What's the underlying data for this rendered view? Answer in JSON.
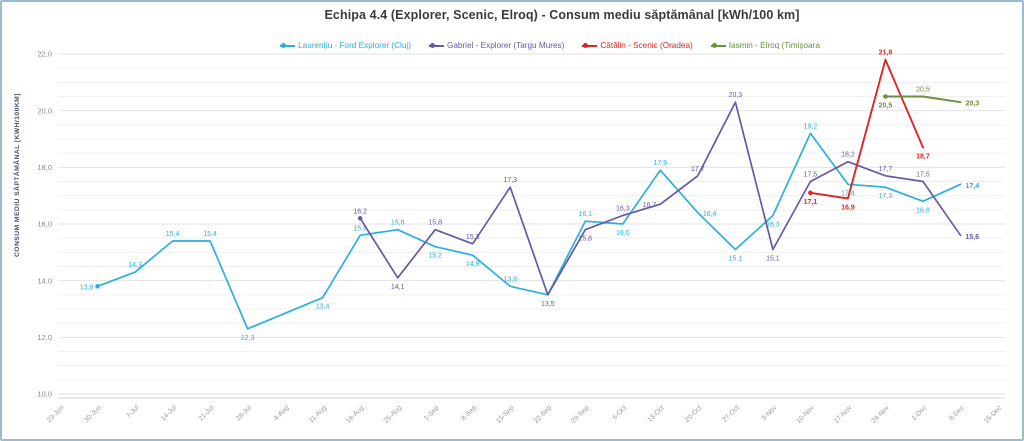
{
  "title": "Echipa 4.4 (Explorer, Scenic, Elroq) - Consum mediu săptămânal [kWh/100 km]",
  "y_axis": {
    "title": "CONSUM MEDIU SĂPTĂMÂNAL [KWH/100KM]",
    "tick_labels": [
      "10,0",
      "12,0",
      "14,0",
      "16,0",
      "18,0",
      "20,0",
      "22,0"
    ],
    "min": 10.0,
    "max": 22.0,
    "major_step": 2.0,
    "minor_step": 0.5
  },
  "legend": {
    "position": "top",
    "items": [
      {
        "label": "Laurențiu - Ford Explorer (Cluj)",
        "color": "#2bafdf"
      },
      {
        "label": "Gabriel - Explorer (Targu Mures)",
        "color": "#6958a5"
      },
      {
        "label": "Cătălin - Scenic (Oradea)",
        "color": "#df2525"
      },
      {
        "label": "Iasmin - Elroq (Timișoara",
        "color": "#6c8f3f"
      }
    ]
  },
  "chart_data": {
    "type": "line",
    "title": "Echipa 4.4 (Explorer, Scenic, Elroq) - Consum mediu săptămânal [kWh/100 km]",
    "xlabel": "",
    "ylabel": "CONSUM MEDIU SĂPTĂMÂNAL [KWH/100KM]",
    "ylim": [
      10.0,
      22.0
    ],
    "grid": true,
    "legend_position": "top",
    "categories": [
      "23-Jun",
      "30-Jun",
      "7-Jul",
      "14-Jul",
      "21-Jul",
      "28-Jul",
      "4-Aug",
      "11-Aug",
      "18-Aug",
      "25-Aug",
      "1-Sep",
      "8-Sep",
      "15-Sep",
      "22-Sep",
      "29-Sep",
      "6-Oct",
      "13-Oct",
      "20-Oct",
      "27-Oct",
      "3-Nov",
      "10-Nov",
      "17-Nov",
      "24-Nov",
      "1-Dec",
      "8-Dec",
      "15-Dec"
    ],
    "series": [
      {
        "name": "Laurențiu - Ford Explorer (Cluj)",
        "color": "#2bafdf",
        "points": [
          {
            "c": "30-Jun",
            "v": 13.8,
            "l": "13,8",
            "lp": "left",
            "dot": true
          },
          {
            "c": "7-Jul",
            "v": 14.3,
            "l": "14,3",
            "lp": "above"
          },
          {
            "c": "14-Jul",
            "v": 15.4,
            "l": "15,4",
            "lp": "above"
          },
          {
            "c": "21-Jul",
            "v": 15.4,
            "l": "15,4",
            "lp": "above"
          },
          {
            "c": "28-Jul",
            "v": 12.3,
            "l": "12,3",
            "lp": "below"
          },
          {
            "c": "4-Aug",
            "v": null
          },
          {
            "c": "11-Aug",
            "v": 13.4,
            "l": "13,4",
            "lp": "below"
          },
          {
            "c": "18-Aug",
            "v": 15.6,
            "l": "15,6",
            "lp": "above"
          },
          {
            "c": "25-Aug",
            "v": 15.8,
            "l": "15,8",
            "lp": "above"
          },
          {
            "c": "1-Sep",
            "v": 15.2,
            "l": "15,2",
            "lp": "below"
          },
          {
            "c": "8-Sep",
            "v": 14.9,
            "l": "14,9",
            "lp": "below"
          },
          {
            "c": "15-Sep",
            "v": 13.8,
            "l": "13,8",
            "lp": "above"
          },
          {
            "c": "22-Sep",
            "v": 13.5
          },
          {
            "c": "29-Sep",
            "v": 16.1,
            "l": "16,1",
            "lp": "above"
          },
          {
            "c": "6-Oct",
            "v": 16.0,
            "l": "16,0",
            "lp": "below"
          },
          {
            "c": "13-Oct",
            "v": 17.9,
            "l": "17,9",
            "lp": "above"
          },
          {
            "c": "20-Oct",
            "v": 16.4,
            "l": "16,4",
            "lp": "right"
          },
          {
            "c": "27-Oct",
            "v": 15.1,
            "l": "15,1",
            "lp": "below"
          },
          {
            "c": "3-Nov",
            "v": 16.3,
            "l": "16,3",
            "lp": "below"
          },
          {
            "c": "10-Nov",
            "v": 19.2,
            "l": "19,2",
            "lp": "above"
          },
          {
            "c": "17-Nov",
            "v": 17.4,
            "l": "17,4",
            "lp": "below"
          },
          {
            "c": "24-Nov",
            "v": 17.3,
            "l": "17,3",
            "lp": "below"
          },
          {
            "c": "1-Dec",
            "v": 16.8,
            "l": "16,8",
            "lp": "below"
          },
          {
            "c": "8-Dec",
            "v": 17.4,
            "l": "17,4",
            "lp": "right",
            "b": true
          }
        ]
      },
      {
        "name": "Gabriel - Explorer (Targu Mures)",
        "color": "#6958a5",
        "points": [
          {
            "c": "18-Aug",
            "v": 16.2,
            "l": "16,2",
            "lp": "above",
            "dot": true
          },
          {
            "c": "25-Aug",
            "v": 14.1,
            "l": "14,1",
            "lp": "below"
          },
          {
            "c": "1-Sep",
            "v": 15.8,
            "l": "15,8",
            "lp": "above"
          },
          {
            "c": "8-Sep",
            "v": 15.3,
            "l": "15,3",
            "lp": "above"
          },
          {
            "c": "15-Sep",
            "v": 17.3,
            "l": "17,3",
            "lp": "above"
          },
          {
            "c": "22-Sep",
            "v": 13.5,
            "l": "13,5",
            "lp": "below"
          },
          {
            "c": "29-Sep",
            "v": 15.8,
            "l": "15,8",
            "lp": "below"
          },
          {
            "c": "6-Oct",
            "v": 16.3,
            "l": "16,3",
            "lp": "above"
          },
          {
            "c": "13-Oct",
            "v": 16.7,
            "l": "16,7",
            "lp": "left"
          },
          {
            "c": "20-Oct",
            "v": 17.7,
            "l": "17,7",
            "lp": "above"
          },
          {
            "c": "27-Oct",
            "v": 20.3,
            "l": "20,3",
            "lp": "above"
          },
          {
            "c": "3-Nov",
            "v": 15.1,
            "l": "15,1",
            "lp": "below"
          },
          {
            "c": "10-Nov",
            "v": 17.5,
            "l": "17,5",
            "lp": "above"
          },
          {
            "c": "17-Nov",
            "v": 18.2,
            "l": "18,2",
            "lp": "above"
          },
          {
            "c": "24-Nov",
            "v": 17.7,
            "l": "17,7",
            "lp": "above"
          },
          {
            "c": "1-Dec",
            "v": 17.5,
            "l": "17,5",
            "lp": "above"
          },
          {
            "c": "8-Dec",
            "v": 15.6,
            "l": "15,6",
            "lp": "right",
            "b": true
          }
        ]
      },
      {
        "name": "Cătălin - Scenic (Oradea)",
        "color": "#df2525",
        "points": [
          {
            "c": "10-Nov",
            "v": 17.1,
            "l": "17,1",
            "lp": "below",
            "b": true,
            "dot": true
          },
          {
            "c": "17-Nov",
            "v": 16.9,
            "l": "16,9",
            "lp": "below",
            "b": true
          },
          {
            "c": "24-Nov",
            "v": 21.8,
            "l": "21,8",
            "lp": "above",
            "b": true
          },
          {
            "c": "1-Dec",
            "v": 18.7,
            "l": "18,7",
            "lp": "below",
            "b": true
          }
        ]
      },
      {
        "name": "Iasmin - Elroq (Timișoara",
        "color": "#6c8f3f",
        "points": [
          {
            "c": "24-Nov",
            "v": 20.5,
            "l": "20,5",
            "lp": "below",
            "b": true,
            "dot": true
          },
          {
            "c": "1-Dec",
            "v": 20.5,
            "l": "20,5",
            "lp": "above"
          },
          {
            "c": "8-Dec",
            "v": 20.3,
            "l": "20,3",
            "lp": "right",
            "b": true
          }
        ]
      }
    ]
  }
}
